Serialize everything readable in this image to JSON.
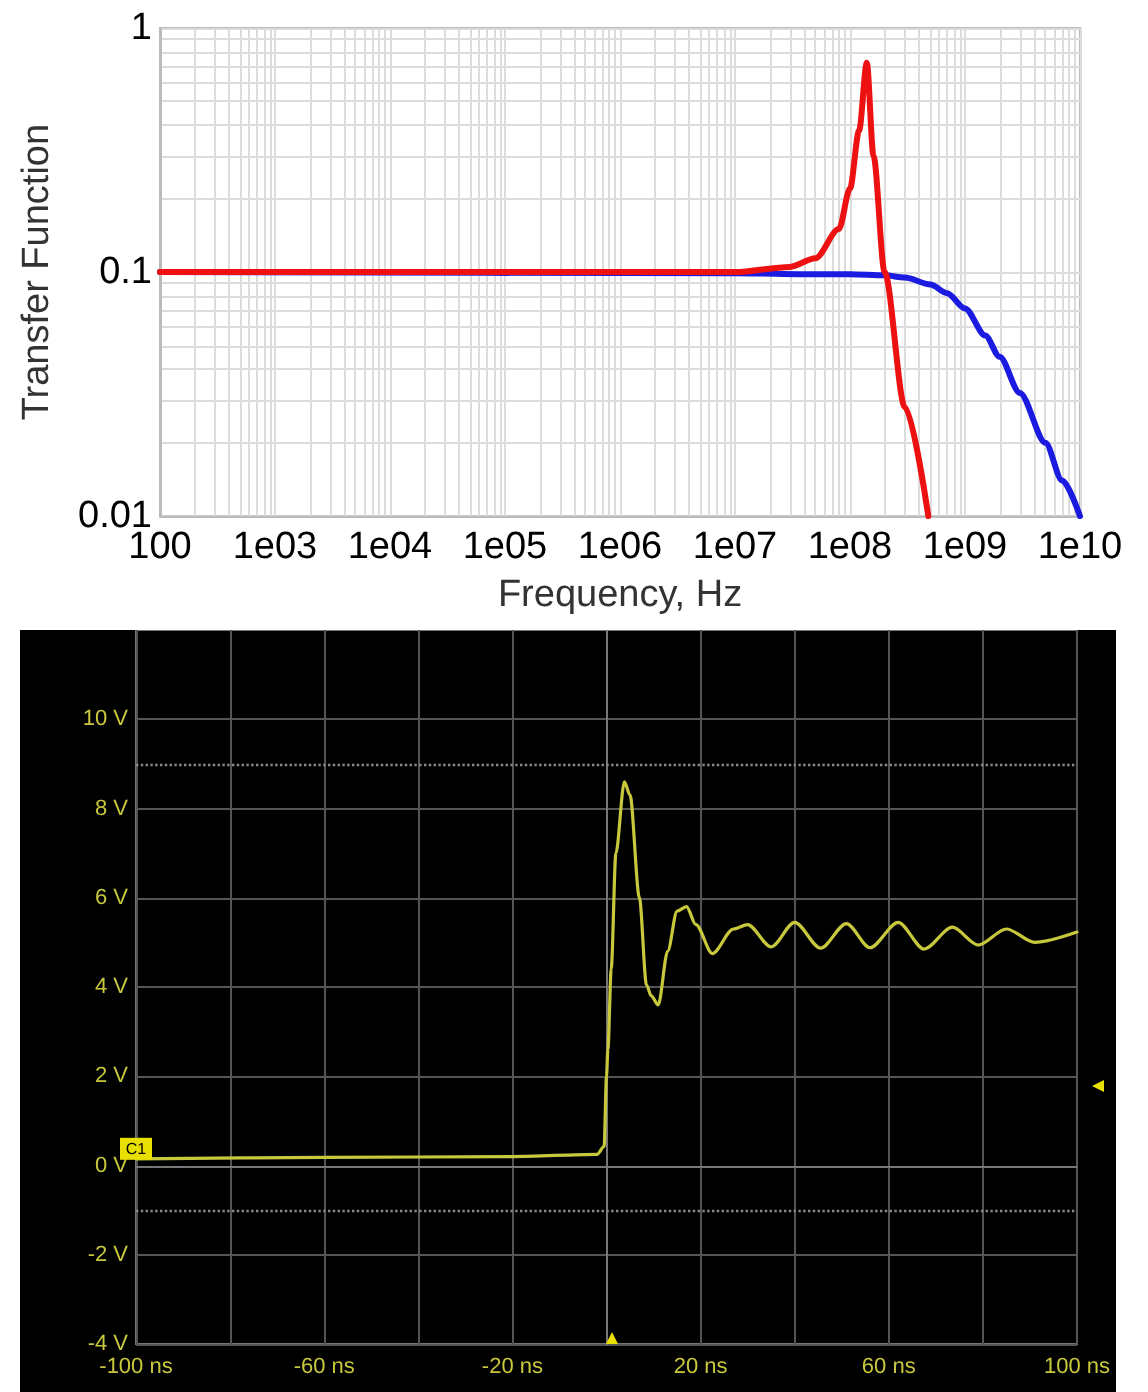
{
  "chart_data": [
    {
      "type": "line",
      "xlabel": "Frequency, Hz",
      "ylabel": "Transfer Function",
      "log": "xy",
      "grid": true,
      "marker": "none",
      "line_style": "solid",
      "xlim": [
        100,
        10000000000
      ],
      "ylim": [
        0.01,
        1
      ],
      "xticks": [
        {
          "value": 100,
          "label": "100"
        },
        {
          "value": 1000,
          "label": "1e03"
        },
        {
          "value": 10000,
          "label": "1e04"
        },
        {
          "value": 100000,
          "label": "1e05"
        },
        {
          "value": 1000000,
          "label": "1e06"
        },
        {
          "value": 10000000,
          "label": "1e07"
        },
        {
          "value": 100000000,
          "label": "1e08"
        },
        {
          "value": 1000000000,
          "label": "1e09"
        },
        {
          "value": 10000000000,
          "label": "1e10"
        }
      ],
      "yticks": [
        0.01,
        0.1,
        1
      ],
      "series": [
        {
          "color": "#1a1ae0",
          "x": [
            100,
            10000000,
            50000000,
            100000000,
            200000000,
            300000000,
            500000000,
            700000000,
            1000000000,
            1500000000,
            2000000000,
            3000000000,
            5000000000,
            7000000000,
            10000000000
          ],
          "values": [
            0.1,
            0.099,
            0.098,
            0.098,
            0.097,
            0.095,
            0.089,
            0.082,
            0.071,
            0.055,
            0.045,
            0.032,
            0.02,
            0.014,
            0.01
          ]
        },
        {
          "color": "#ee1111",
          "x": [
            100,
            10000000,
            30000000,
            50000000,
            80000000,
            100000000,
            120000000,
            140000000,
            160000000,
            200000000,
            300000000,
            480000000
          ],
          "values": [
            0.1,
            0.1,
            0.105,
            0.114,
            0.15,
            0.22,
            0.38,
            0.72,
            0.3,
            0.1,
            0.028,
            0.01
          ]
        }
      ]
    },
    {
      "type": "line",
      "grid": true,
      "marker": "none",
      "line_style": "solid",
      "xlim": [
        -100,
        100
      ],
      "ylim": [
        -4,
        12
      ],
      "xticks": [
        {
          "value": -100,
          "label": "-100 ns"
        },
        {
          "value": -80,
          "label": null
        },
        {
          "value": -60,
          "label": "-60 ns"
        },
        {
          "value": -40,
          "label": null
        },
        {
          "value": -20,
          "label": "-20 ns"
        },
        {
          "value": 0,
          "label": null
        },
        {
          "value": 20,
          "label": "20 ns"
        },
        {
          "value": 40,
          "label": null
        },
        {
          "value": 60,
          "label": "60 ns"
        },
        {
          "value": 80,
          "label": null
        },
        {
          "value": 100,
          "label": "100 ns"
        }
      ],
      "yticks": [
        {
          "value": -4,
          "label": "-4 V"
        },
        {
          "value": -2,
          "label": "-2 V"
        },
        {
          "value": 0,
          "label": "0 V"
        },
        {
          "value": 2,
          "label": "2 V"
        },
        {
          "value": 4,
          "label": "4 V"
        },
        {
          "value": 6,
          "label": "6 V"
        },
        {
          "value": 8,
          "label": "8 V"
        },
        {
          "value": 10,
          "label": "10 V"
        }
      ],
      "ref_lines": [
        {
          "axis": "y",
          "value": 9,
          "color": "#888888",
          "line_style": "dotted"
        },
        {
          "axis": "y",
          "value": -1,
          "color": "#888888",
          "line_style": "dotted"
        }
      ],
      "annotations": [
        {
          "text": "C1",
          "x": -100,
          "y": 0.15
        }
      ],
      "series": [
        {
          "color": "#c8c83c",
          "x": [
            -100,
            -60,
            -20,
            -2,
            -0.5,
            0,
            0.3,
            1,
            2,
            3.8,
            5,
            7,
            8.5,
            9.5,
            11,
            13,
            15,
            17,
            19,
            22.5,
            27,
            30,
            35,
            40,
            45.5,
            51,
            56,
            62,
            67.5,
            73.5,
            79,
            85,
            91,
            100
          ],
          "values": [
            0.15,
            0.18,
            0.2,
            0.25,
            0.43,
            2.0,
            2.6,
            4.4,
            7.0,
            8.6,
            8.3,
            6.0,
            4.05,
            3.8,
            3.6,
            4.8,
            5.7,
            5.8,
            5.4,
            4.75,
            5.3,
            5.4,
            4.9,
            5.45,
            4.87,
            5.42,
            4.88,
            5.45,
            4.85,
            5.34,
            4.94,
            5.3,
            5.0,
            5.23
          ]
        }
      ]
    }
  ]
}
